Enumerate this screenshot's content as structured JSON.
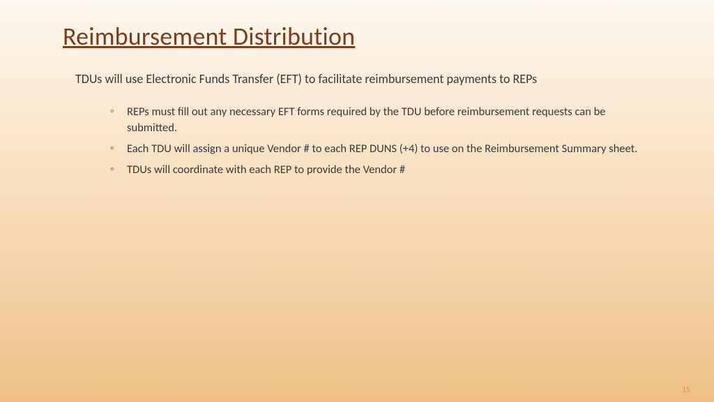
{
  "styling": {
    "background_gradient_top": "#fdf8f0",
    "background_gradient_bottom": "#f0c185",
    "title_color": "#7a3f1a",
    "text_color": "#3a3a3a",
    "bullet_color": "#b5651d",
    "page_number_color": "#d09a68",
    "title_fontsize": 36,
    "intro_fontsize": 18,
    "bullet_fontsize": 16.5,
    "page_number_fontsize": 12
  },
  "slide": {
    "title": "Reimbursement Distribution",
    "intro": "TDUs will use Electronic Funds Transfer (EFT) to facilitate reimbursement payments to REPs",
    "bullets": [
      "REPs must fill out any necessary EFT forms required by the TDU before reimbursement requests can be submitted.",
      "Each TDU will assign a unique Vendor # to each REP DUNS (+4) to use on the Reimbursement Summary sheet.",
      "TDUs will coordinate with each REP to provide the Vendor #"
    ],
    "page_number": "15"
  }
}
